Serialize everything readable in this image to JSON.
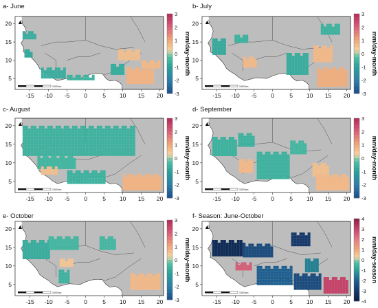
{
  "chart_data": [
    {
      "type": "heatmap",
      "title": "a- June",
      "xticks": [
        -15,
        -10,
        -5,
        0,
        5,
        10,
        15,
        20
      ],
      "yticks": [
        5,
        10,
        15,
        20
      ],
      "xlim": [
        -19,
        21
      ],
      "ylim": [
        2,
        22
      ],
      "colorbar": {
        "label": "mm/day-month",
        "ticks": [
          3,
          2,
          1,
          0,
          -1,
          -2,
          -3
        ],
        "range": [
          -3,
          3
        ]
      },
      "scale_bar": "1000 km",
      "anomaly_regions": [
        {
          "lon": [
            -16.5,
            -15
          ],
          "lat": [
            11,
            13
          ],
          "value": -0.8
        },
        {
          "lon": [
            -12,
            -6
          ],
          "lat": [
            5,
            8
          ],
          "value": -0.7
        },
        {
          "lon": [
            -5,
            2
          ],
          "lat": [
            4.5,
            6
          ],
          "value": -0.6
        },
        {
          "lon": [
            6,
            10
          ],
          "lat": [
            6,
            9
          ],
          "value": -0.7
        },
        {
          "lon": [
            8,
            14
          ],
          "lat": [
            10,
            13
          ],
          "value": 0.6
        },
        {
          "lon": [
            11,
            18
          ],
          "lat": [
            4,
            8
          ],
          "value": 0.8
        },
        {
          "lon": [
            15,
            20
          ],
          "lat": [
            8,
            10
          ],
          "value": 0.7
        },
        {
          "lon": [
            -17,
            -14
          ],
          "lat": [
            16,
            18
          ],
          "value": -0.7
        }
      ]
    },
    {
      "type": "heatmap",
      "title": "b- July",
      "xticks": [
        -15,
        -10,
        -5,
        0,
        5,
        10,
        15,
        20
      ],
      "yticks": [
        5,
        10,
        15,
        20
      ],
      "xlim": [
        -19,
        21
      ],
      "ylim": [
        2,
        22
      ],
      "colorbar": {
        "label": "mm/day-month",
        "ticks": [
          3,
          2,
          1,
          0,
          -1,
          -2,
          -3
        ],
        "range": [
          -3,
          3
        ]
      },
      "scale_bar": "1000 km",
      "anomaly_regions": [
        {
          "lon": [
            -17,
            -13
          ],
          "lat": [
            12,
            16
          ],
          "value": -0.8
        },
        {
          "lon": [
            -11,
            -7
          ],
          "lat": [
            15,
            17
          ],
          "value": -0.6
        },
        {
          "lon": [
            -8,
            -5
          ],
          "lat": [
            8,
            11
          ],
          "value": 0.7
        },
        {
          "lon": [
            3,
            9
          ],
          "lat": [
            6,
            12
          ],
          "value": -0.7
        },
        {
          "lon": [
            11,
            16
          ],
          "lat": [
            10,
            14
          ],
          "value": 0.7
        },
        {
          "lon": [
            12,
            20
          ],
          "lat": [
            3,
            8
          ],
          "value": 0.9
        },
        {
          "lon": [
            13,
            18
          ],
          "lat": [
            17,
            20
          ],
          "value": -0.6
        }
      ]
    },
    {
      "type": "heatmap",
      "title": "c- August",
      "xticks": [
        -15,
        -10,
        -5,
        0,
        5,
        10,
        15,
        20
      ],
      "yticks": [
        5,
        10,
        15,
        20
      ],
      "xlim": [
        -19,
        21
      ],
      "ylim": [
        2,
        22
      ],
      "colorbar": {
        "label": "mm/day-month",
        "ticks": [
          3,
          2,
          1,
          0,
          -1,
          -2,
          -3
        ],
        "range": [
          -3,
          3
        ]
      },
      "scale_bar": "1000 km",
      "anomaly_regions": [
        {
          "lon": [
            -17,
            13
          ],
          "lat": [
            12,
            20
          ],
          "value": -0.6
        },
        {
          "lon": [
            -13,
            -3
          ],
          "lat": [
            9,
            12
          ],
          "value": -0.5
        },
        {
          "lon": [
            -12,
            -8
          ],
          "lat": [
            7,
            9
          ],
          "value": 0.6
        },
        {
          "lon": [
            -5,
            5
          ],
          "lat": [
            5,
            8
          ],
          "value": -0.6
        },
        {
          "lon": [
            10,
            20
          ],
          "lat": [
            3,
            7
          ],
          "value": 0.8
        }
      ]
    },
    {
      "type": "heatmap",
      "title": "d- September",
      "xticks": [
        -15,
        -10,
        -5,
        0,
        5,
        10,
        15,
        20
      ],
      "yticks": [
        5,
        10,
        15,
        20
      ],
      "xlim": [
        -19,
        21
      ],
      "ylim": [
        2,
        22
      ],
      "colorbar": {
        "label": "mm/day-month",
        "ticks": [
          3,
          2,
          1,
          0,
          -1,
          -2,
          -3
        ],
        "range": [
          -3,
          3
        ]
      },
      "scale_bar": "1000 km",
      "anomaly_regions": [
        {
          "lon": [
            -17,
            -10
          ],
          "lat": [
            12,
            17
          ],
          "value": -0.6
        },
        {
          "lon": [
            -10,
            -5
          ],
          "lat": [
            15,
            18
          ],
          "value": -0.6
        },
        {
          "lon": [
            -9,
            -6
          ],
          "lat": [
            8,
            11
          ],
          "value": 0.7
        },
        {
          "lon": [
            -5,
            4
          ],
          "lat": [
            6,
            13
          ],
          "value": -0.6
        },
        {
          "lon": [
            4,
            9
          ],
          "lat": [
            13,
            16
          ],
          "value": -0.5
        },
        {
          "lon": [
            10,
            15
          ],
          "lat": [
            7,
            10
          ],
          "value": 0.6
        },
        {
          "lon": [
            11,
            20
          ],
          "lat": [
            3,
            7
          ],
          "value": 0.7
        }
      ]
    },
    {
      "type": "heatmap",
      "title": "e- October",
      "xticks": [
        -15,
        -10,
        -5,
        0,
        5,
        10,
        15,
        20
      ],
      "yticks": [
        5,
        10,
        15,
        20
      ],
      "xlim": [
        -19,
        21
      ],
      "ylim": [
        2,
        22
      ],
      "colorbar": {
        "label": "mm/day-month",
        "ticks": [
          3,
          2,
          1,
          0,
          -1,
          -2,
          -3
        ],
        "range": [
          -3,
          3
        ]
      },
      "scale_bar": "1000 km",
      "anomaly_regions": [
        {
          "lon": [
            -17,
            -10
          ],
          "lat": [
            12,
            17
          ],
          "value": -0.7
        },
        {
          "lon": [
            -10,
            -2
          ],
          "lat": [
            15,
            18
          ],
          "value": -0.5
        },
        {
          "lon": [
            -8,
            -5
          ],
          "lat": [
            6,
            9
          ],
          "value": -0.6
        },
        {
          "lon": [
            -7,
            -4
          ],
          "lat": [
            10,
            12
          ],
          "value": 0.5
        },
        {
          "lon": [
            3,
            8
          ],
          "lat": [
            15,
            18
          ],
          "value": -0.5
        },
        {
          "lon": [
            12,
            20
          ],
          "lat": [
            4,
            8
          ],
          "value": 0.7
        }
      ]
    },
    {
      "type": "heatmap",
      "title": "f- Season: June-October",
      "xticks": [
        -15,
        -10,
        -5,
        0,
        5,
        10,
        15,
        20
      ],
      "yticks": [
        5,
        10,
        15,
        20
      ],
      "xlim": [
        -19,
        21
      ],
      "ylim": [
        2,
        22
      ],
      "colorbar": {
        "label": "mm/day-season",
        "ticks": [
          4,
          3,
          2,
          1,
          0,
          -1,
          -2,
          -3,
          -4
        ],
        "range": [
          -4,
          4
        ]
      },
      "scale_bar": "1000 km",
      "anomaly_regions": [
        {
          "lon": [
            -17,
            -8
          ],
          "lat": [
            13,
            17
          ],
          "value": -3.5
        },
        {
          "lon": [
            -8,
            0
          ],
          "lat": [
            13,
            16
          ],
          "value": -2.5
        },
        {
          "lon": [
            5,
            10
          ],
          "lat": [
            16,
            19
          ],
          "value": -3.0
        },
        {
          "lon": [
            -10,
            -6
          ],
          "lat": [
            9,
            11
          ],
          "value": 2.5
        },
        {
          "lon": [
            -5,
            5
          ],
          "lat": [
            5,
            10
          ],
          "value": -2.0
        },
        {
          "lon": [
            5,
            13
          ],
          "lat": [
            4,
            8
          ],
          "value": -2.5
        },
        {
          "lon": [
            13,
            20
          ],
          "lat": [
            3,
            7
          ],
          "value": 3.0
        },
        {
          "lon": [
            8,
            12
          ],
          "lat": [
            9,
            12
          ],
          "value": -1.5
        }
      ]
    }
  ]
}
